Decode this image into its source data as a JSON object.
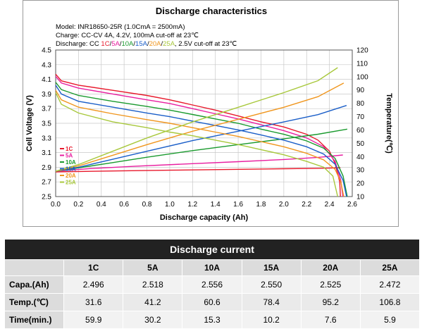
{
  "chart_data": {
    "type": "line",
    "title": "Discharge characteristics",
    "info": {
      "model": "Model: INR18650-25R (1.0CmA = 2500mA)",
      "charge": "Charge: CC-CV 4A, 4.2V, 100mA cut-off at 23℃",
      "discharge_prefix": "Discharge: CC",
      "discharge_rates": [
        "1C",
        "5A",
        "10A",
        "15A",
        "20A",
        "25A"
      ],
      "discharge_suffix": ", 2.5V cut-off at 23℃"
    },
    "xlabel": "Discharge capacity (Ah)",
    "ylabel": "Cell Voltage (V)",
    "y2label": "Temperature(℃)",
    "xlim": [
      0,
      2.6
    ],
    "ylim": [
      2.5,
      4.5
    ],
    "y2lim": [
      10,
      120
    ],
    "xticks": [
      "0.0",
      "0.2",
      "0.4",
      "0.6",
      "0.8",
      "1.0",
      "1.2",
      "1.4",
      "1.6",
      "1.8",
      "2.0",
      "2.2",
      "2.4",
      "2.6"
    ],
    "yticks": [
      "2.5",
      "2.7",
      "2.9",
      "3.1",
      "3.3",
      "3.5",
      "3.7",
      "3.9",
      "4.1",
      "4.3",
      "4.5"
    ],
    "y2ticks": [
      "10",
      "20",
      "30",
      "40",
      "50",
      "60",
      "70",
      "80",
      "90",
      "100",
      "110",
      "120"
    ],
    "grid": true,
    "legend_position": "lower-left",
    "series": [
      {
        "name": "1C",
        "color": "#e8192c",
        "voltage": [
          [
            0,
            4.17
          ],
          [
            0.05,
            4.08
          ],
          [
            0.2,
            4.02
          ],
          [
            0.5,
            3.95
          ],
          [
            0.8,
            3.88
          ],
          [
            1.0,
            3.82
          ],
          [
            1.2,
            3.75
          ],
          [
            1.4,
            3.68
          ],
          [
            1.6,
            3.6
          ],
          [
            1.8,
            3.52
          ],
          [
            2.0,
            3.45
          ],
          [
            2.2,
            3.35
          ],
          [
            2.3,
            3.27
          ],
          [
            2.4,
            3.12
          ],
          [
            2.45,
            2.95
          ],
          [
            2.49,
            2.7
          ],
          [
            2.496,
            2.5
          ]
        ],
        "temperature": [
          [
            0,
            28.5
          ],
          [
            0.5,
            29.2
          ],
          [
            1.0,
            29.8
          ],
          [
            1.5,
            30.3
          ],
          [
            2.0,
            30.9
          ],
          [
            2.3,
            31.2
          ],
          [
            2.496,
            31.6
          ]
        ]
      },
      {
        "name": "5A",
        "color": "#e81ea0",
        "voltage": [
          [
            0,
            4.14
          ],
          [
            0.05,
            4.05
          ],
          [
            0.2,
            3.98
          ],
          [
            0.5,
            3.9
          ],
          [
            0.8,
            3.82
          ],
          [
            1.0,
            3.77
          ],
          [
            1.2,
            3.7
          ],
          [
            1.4,
            3.63
          ],
          [
            1.6,
            3.56
          ],
          [
            1.8,
            3.48
          ],
          [
            2.0,
            3.4
          ],
          [
            2.2,
            3.3
          ],
          [
            2.35,
            3.18
          ],
          [
            2.45,
            2.98
          ],
          [
            2.5,
            2.72
          ],
          [
            2.518,
            2.5
          ]
        ],
        "temperature": [
          [
            0,
            29
          ],
          [
            0.3,
            31
          ],
          [
            0.7,
            32.8
          ],
          [
            1.2,
            34.7
          ],
          [
            1.6,
            36.2
          ],
          [
            2.0,
            37.8
          ],
          [
            2.3,
            39.4
          ],
          [
            2.518,
            41.2
          ]
        ]
      },
      {
        "name": "10A",
        "color": "#1a9a2e",
        "voltage": [
          [
            0,
            4.06
          ],
          [
            0.05,
            3.96
          ],
          [
            0.2,
            3.88
          ],
          [
            0.5,
            3.8
          ],
          [
            0.8,
            3.73
          ],
          [
            1.0,
            3.68
          ],
          [
            1.2,
            3.62
          ],
          [
            1.4,
            3.56
          ],
          [
            1.6,
            3.5
          ],
          [
            1.8,
            3.42
          ],
          [
            2.0,
            3.35
          ],
          [
            2.2,
            3.26
          ],
          [
            2.35,
            3.16
          ],
          [
            2.45,
            3.02
          ],
          [
            2.52,
            2.78
          ],
          [
            2.556,
            2.5
          ]
        ],
        "temperature": [
          [
            0,
            29
          ],
          [
            0.2,
            31.5
          ],
          [
            0.5,
            35.5
          ],
          [
            0.8,
            39.5
          ],
          [
            1.2,
            44.5
          ],
          [
            1.6,
            49
          ],
          [
            2.0,
            53.3
          ],
          [
            2.3,
            56.8
          ],
          [
            2.556,
            60.6
          ]
        ]
      },
      {
        "name": "15A",
        "color": "#1a5ec8",
        "voltage": [
          [
            0,
            4.02
          ],
          [
            0.05,
            3.9
          ],
          [
            0.2,
            3.8
          ],
          [
            0.5,
            3.72
          ],
          [
            0.8,
            3.64
          ],
          [
            1.0,
            3.59
          ],
          [
            1.2,
            3.53
          ],
          [
            1.4,
            3.47
          ],
          [
            1.6,
            3.41
          ],
          [
            1.8,
            3.34
          ],
          [
            2.0,
            3.27
          ],
          [
            2.2,
            3.18
          ],
          [
            2.35,
            3.08
          ],
          [
            2.45,
            2.94
          ],
          [
            2.52,
            2.72
          ],
          [
            2.55,
            2.5
          ]
        ],
        "temperature": [
          [
            0,
            29
          ],
          [
            0.2,
            32
          ],
          [
            0.5,
            38
          ],
          [
            0.8,
            44
          ],
          [
            1.2,
            52
          ],
          [
            1.6,
            59
          ],
          [
            2.0,
            66
          ],
          [
            2.3,
            71.5
          ],
          [
            2.55,
            78.4
          ]
        ]
      },
      {
        "name": "20A",
        "color": "#f0961e",
        "voltage": [
          [
            0,
            3.95
          ],
          [
            0.05,
            3.82
          ],
          [
            0.2,
            3.72
          ],
          [
            0.5,
            3.63
          ],
          [
            0.8,
            3.55
          ],
          [
            1.0,
            3.5
          ],
          [
            1.2,
            3.44
          ],
          [
            1.4,
            3.38
          ],
          [
            1.6,
            3.32
          ],
          [
            1.8,
            3.25
          ],
          [
            2.0,
            3.18
          ],
          [
            2.2,
            3.09
          ],
          [
            2.35,
            3.0
          ],
          [
            2.45,
            2.87
          ],
          [
            2.5,
            2.7
          ],
          [
            2.525,
            2.5
          ]
        ],
        "temperature": [
          [
            0,
            29
          ],
          [
            0.2,
            33
          ],
          [
            0.5,
            41
          ],
          [
            0.8,
            49
          ],
          [
            1.2,
            59
          ],
          [
            1.6,
            68
          ],
          [
            2.0,
            77
          ],
          [
            2.3,
            85
          ],
          [
            2.525,
            95.2
          ]
        ]
      },
      {
        "name": "25A",
        "color": "#a8c83c",
        "voltage": [
          [
            0,
            3.92
          ],
          [
            0.05,
            3.76
          ],
          [
            0.2,
            3.64
          ],
          [
            0.5,
            3.52
          ],
          [
            0.8,
            3.44
          ],
          [
            1.0,
            3.38
          ],
          [
            1.2,
            3.33
          ],
          [
            1.4,
            3.27
          ],
          [
            1.6,
            3.21
          ],
          [
            1.8,
            3.14
          ],
          [
            2.0,
            3.07
          ],
          [
            2.2,
            2.98
          ],
          [
            2.35,
            2.9
          ],
          [
            2.43,
            2.78
          ],
          [
            2.472,
            2.5
          ]
        ],
        "temperature": [
          [
            0,
            29
          ],
          [
            0.2,
            34
          ],
          [
            0.5,
            44
          ],
          [
            0.8,
            54
          ],
          [
            1.2,
            66
          ],
          [
            1.6,
            77
          ],
          [
            2.0,
            88
          ],
          [
            2.3,
            97
          ],
          [
            2.472,
            106.8
          ]
        ]
      }
    ]
  },
  "table": {
    "title": "Discharge current",
    "columns": [
      "1C",
      "5A",
      "10A",
      "15A",
      "20A",
      "25A"
    ],
    "rows": [
      {
        "label": "Capa.(Ah)",
        "values": [
          "2.496",
          "2.518",
          "2.556",
          "2.550",
          "2.525",
          "2.472"
        ]
      },
      {
        "label": "Temp.(℃)",
        "values": [
          "31.6",
          "41.2",
          "60.6",
          "78.4",
          "95.2",
          "106.8"
        ]
      },
      {
        "label": "Time(min.)",
        "values": [
          "59.9",
          "30.2",
          "15.3",
          "10.2",
          "7.6",
          "5.9"
        ]
      }
    ]
  }
}
